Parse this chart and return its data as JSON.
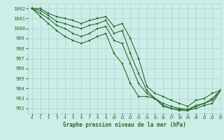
{
  "title": "",
  "xlabel": "Graphe pression niveau de la mer (hPa)",
  "ylabel": "",
  "bg_color": "#cceee8",
  "grid_color": "#aad4cc",
  "line_color": "#2d6a2d",
  "marker_color": "#2d6a2d",
  "xlim": [
    -0.5,
    23
  ],
  "ylim": [
    991.5,
    1002.5
  ],
  "yticks": [
    992,
    993,
    994,
    995,
    996,
    997,
    998,
    999,
    1000,
    1001,
    1002
  ],
  "xticks": [
    0,
    1,
    2,
    3,
    4,
    5,
    6,
    7,
    8,
    9,
    10,
    11,
    12,
    13,
    14,
    15,
    16,
    17,
    18,
    19,
    20,
    21,
    22,
    23
  ],
  "series": [
    [
      1002.0,
      1002.0,
      1001.5,
      1001.2,
      1001.0,
      1000.8,
      1000.5,
      1000.8,
      1001.0,
      1001.2,
      1000.2,
      1000.5,
      999.0,
      997.0,
      994.2,
      993.5,
      993.2,
      992.8,
      992.5,
      992.2,
      992.8,
      993.0,
      993.5,
      993.8
    ],
    [
      1002.0,
      1001.8,
      1001.3,
      1000.7,
      1000.5,
      1000.2,
      1000.0,
      1000.3,
      1000.5,
      1000.8,
      999.5,
      999.8,
      997.5,
      995.5,
      993.8,
      993.0,
      992.5,
      992.2,
      992.0,
      991.9,
      992.3,
      992.5,
      993.0,
      993.8
    ],
    [
      1002.0,
      1001.5,
      1001.0,
      1000.3,
      1000.0,
      999.5,
      999.2,
      999.5,
      1000.0,
      1000.2,
      998.8,
      998.5,
      996.5,
      994.5,
      993.5,
      993.0,
      992.3,
      992.0,
      991.9,
      991.8,
      992.2,
      992.5,
      992.8,
      993.8
    ],
    [
      1002.0,
      1001.2,
      1000.5,
      999.8,
      999.2,
      998.8,
      998.5,
      998.8,
      999.2,
      999.5,
      997.5,
      996.5,
      994.5,
      993.2,
      993.2,
      993.0,
      992.2,
      992.0,
      991.8,
      991.8,
      992.0,
      992.3,
      992.5,
      993.8
    ]
  ]
}
